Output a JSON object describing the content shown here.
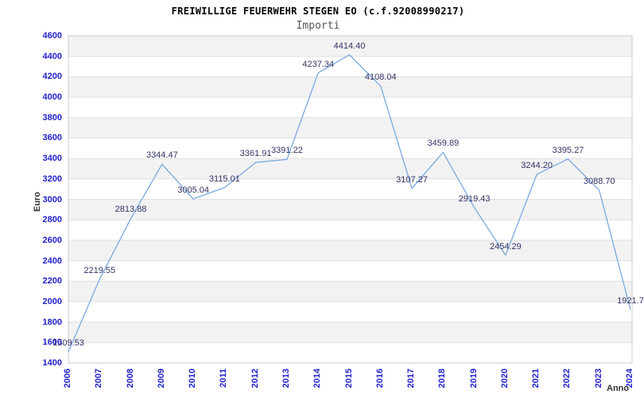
{
  "title": "FREIWILLIGE FEUERWEHR STEGEN EO (c.f.92008990217)",
  "subtitle": "Importi",
  "axis": {
    "y_label": "Euro",
    "x_label": "Anno"
  },
  "chart_data": {
    "type": "line",
    "title": "FREIWILLIGE FEUERWEHR STEGEN EO (c.f.92008990217)",
    "subtitle": "Importi",
    "xlabel": "Anno",
    "ylabel": "Euro",
    "categories": [
      "2006",
      "2007",
      "2008",
      "2009",
      "2010",
      "2011",
      "2012",
      "2013",
      "2014",
      "2015",
      "2016",
      "2017",
      "2018",
      "2019",
      "2020",
      "2021",
      "2022",
      "2023",
      "2024"
    ],
    "series": [
      {
        "name": "Importi",
        "values": [
          1509.53,
          2219.55,
          2813.88,
          3344.47,
          3005.04,
          3115.01,
          3361.91,
          3391.22,
          4237.34,
          4414.4,
          4108.04,
          3107.27,
          3459.89,
          2919.43,
          2454.29,
          3244.2,
          3395.27,
          3088.7,
          1921.7
        ]
      }
    ],
    "point_labels": [
      "1509.53",
      "2219.55",
      "2813.88",
      "3344.47",
      "3005.04",
      "3115.01",
      "3361.91",
      "3391.22",
      "4237.34",
      "4414.40",
      "4108.04",
      "3107.27",
      "3459.89",
      "2919.43",
      "2454.29",
      "3244.20",
      "3395.27",
      "3088.70",
      "1921.7"
    ],
    "ylim": [
      1400,
      4600
    ],
    "ytick_step": 200,
    "grid": true,
    "alternating_bands": true,
    "legend_position": "none",
    "colors": {
      "line": "#7aa8e0",
      "point_label": "#333366",
      "tick_label": "#2222cc",
      "band": "#f2f2f2",
      "gridline": "#e0e0e0",
      "plot_border": "#cccccc",
      "title": "#000000",
      "subtitle": "#555555",
      "axis_title": "#333333"
    }
  }
}
